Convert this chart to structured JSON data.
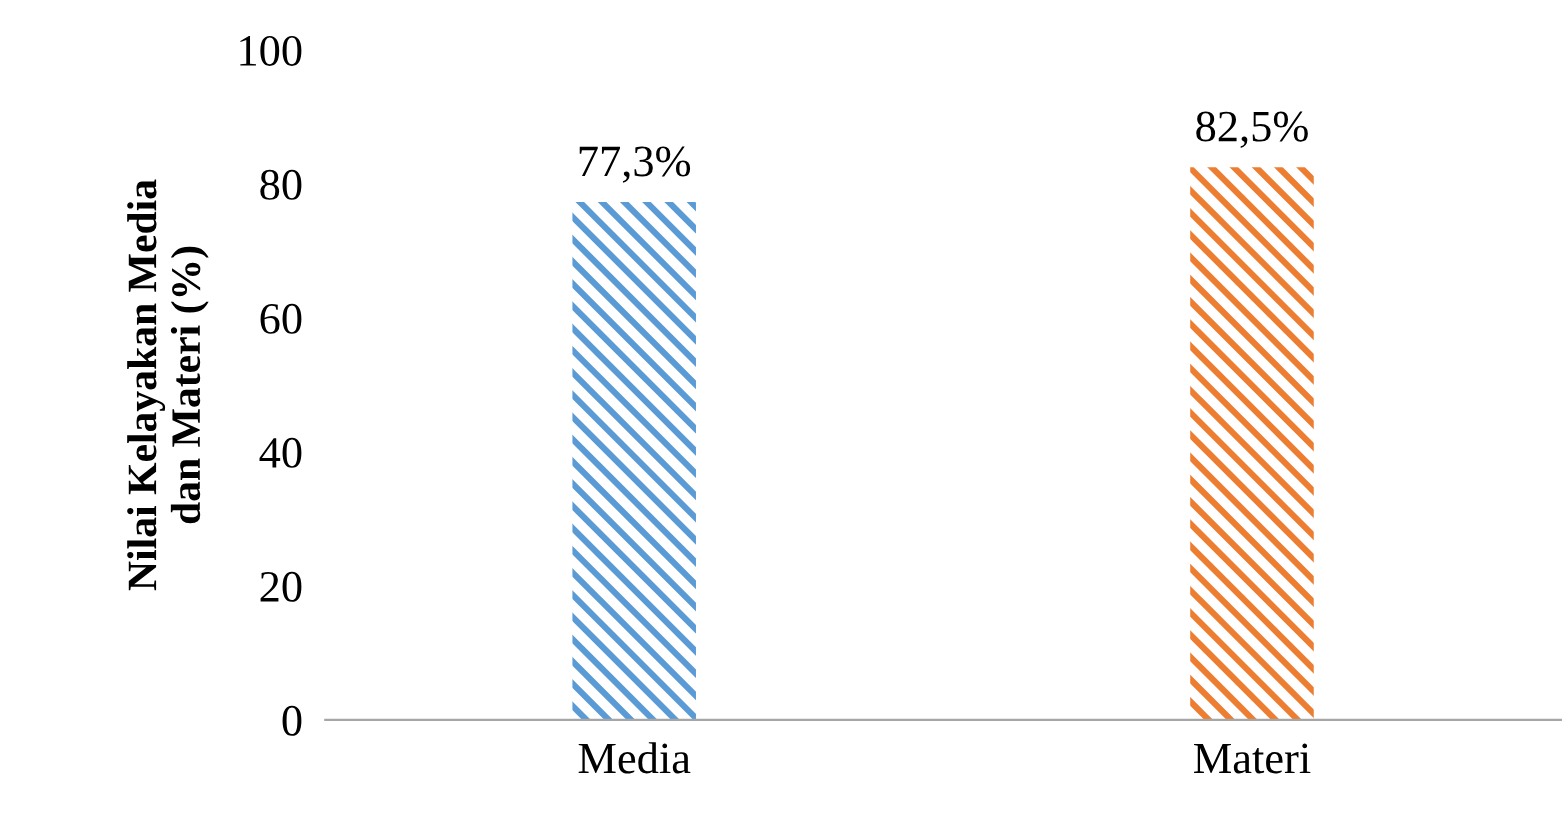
{
  "chart_data": {
    "type": "bar",
    "ylabel": "Nilai Kelayakan Media\ndan Materi (%)",
    "categories": [
      "Media",
      "Materi"
    ],
    "values": [
      77.3,
      82.5
    ],
    "colors": [
      "#5b9bd5",
      "#ed7d31"
    ],
    "value_labels": [
      "77,3%",
      "82,5%"
    ],
    "ylim": [
      0,
      100
    ],
    "yticks": [
      0,
      20,
      40,
      60,
      80,
      100
    ],
    "grid": false,
    "legend": false
  }
}
